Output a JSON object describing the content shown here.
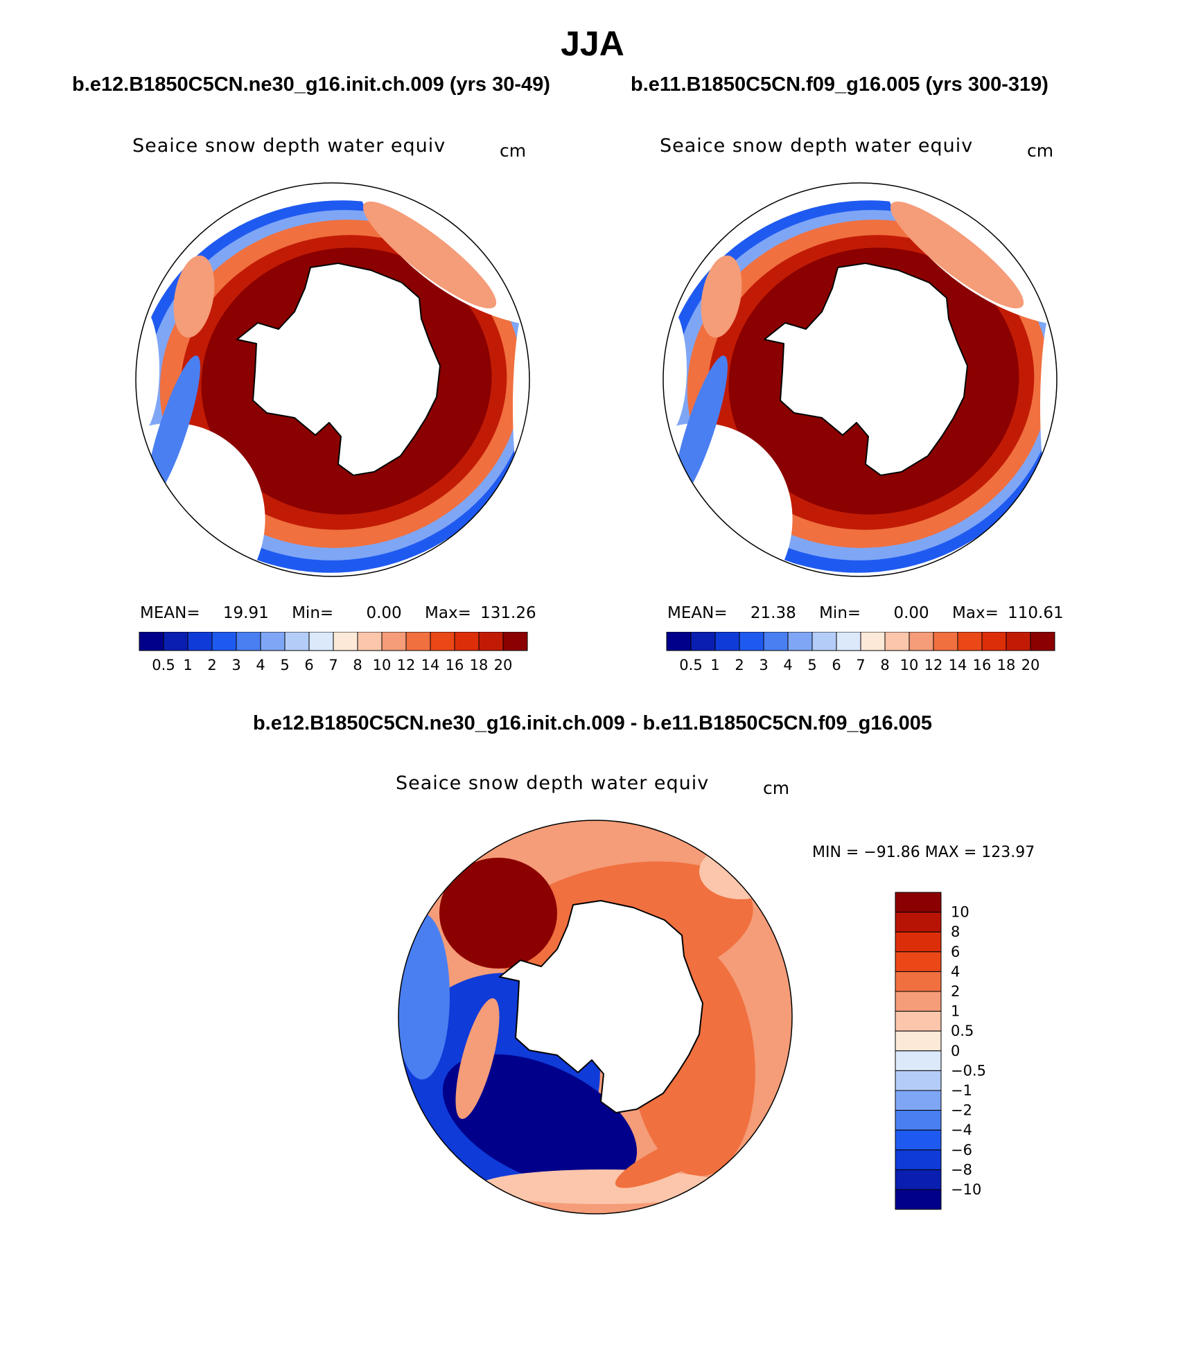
{
  "title": "JJA",
  "panels": [
    {
      "case_title": "b.e12.B1850C5CN.ne30_g16.init.ch.009 (yrs 30-49)",
      "variable": "Seaice snow depth water equiv",
      "units": "cm",
      "stats": {
        "mean_label": "MEAN=",
        "mean": "19.91",
        "min_label": "Min=",
        "min": "0.00",
        "max_label": "Max=",
        "max": "131.26"
      }
    },
    {
      "case_title": "b.e11.B1850C5CN.f09_g16.005 (yrs 300-319)",
      "variable": "Seaice snow depth water equiv",
      "units": "cm",
      "stats": {
        "mean_label": "MEAN=",
        "mean": "21.38",
        "min_label": "Min=",
        "min": "0.00",
        "max_label": "Max=",
        "max": "110.61"
      }
    }
  ],
  "colorbar": {
    "colors": [
      "#00008b",
      "#0a1fb0",
      "#0f3bd8",
      "#1f5af0",
      "#4a7ff2",
      "#7fa6f5",
      "#b4cdf8",
      "#dbe9fb",
      "#fde9d8",
      "#fbc6ab",
      "#f59c78",
      "#f0703f",
      "#eb4818",
      "#dd2e0a",
      "#c21b05",
      "#8b0000"
    ],
    "labels": [
      "0.5",
      "1",
      "2",
      "3",
      "4",
      "5",
      "6",
      "7",
      "8",
      "10",
      "12",
      "14",
      "16",
      "18",
      "20"
    ]
  },
  "difference": {
    "title": "b.e12.B1850C5CN.ne30_g16.init.ch.009 - b.e11.B1850C5CN.f09_g16.005",
    "variable": "Seaice snow depth water equiv",
    "units": "cm",
    "minmax": "MIN = −91.86  MAX = 123.97",
    "colorbar": {
      "colors": [
        "#8b0000",
        "#b81405",
        "#dd2e0a",
        "#eb4818",
        "#f0703f",
        "#f59c78",
        "#fbc6ab",
        "#fde9d8",
        "#dbe9fb",
        "#b4cdf8",
        "#7fa6f5",
        "#4a7ff2",
        "#1f5af0",
        "#0f3bd8",
        "#0a1fb0",
        "#00008b"
      ],
      "labels": [
        "10",
        "8",
        "6",
        "4",
        "2",
        "1",
        "0.5",
        "0",
        "−0.5",
        "−1",
        "−2",
        "−4",
        "−6",
        "−8",
        "−10"
      ]
    }
  },
  "colors": {
    "land": "#ffffff",
    "coast": "#000000",
    "high": "#8b0000",
    "low": "#00008b"
  }
}
